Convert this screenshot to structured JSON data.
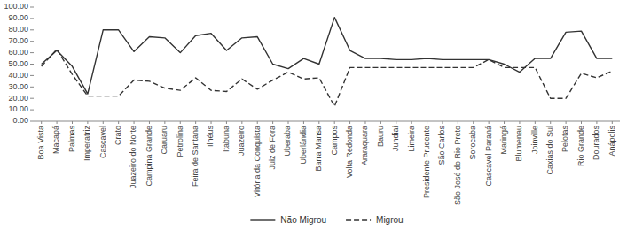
{
  "chart_data": {
    "type": "line",
    "categories": [
      "Boa Vista",
      "Macapá",
      "Palmas",
      "Imperatriz",
      "Cascavel",
      "Crato",
      "Juazeiro do Norte",
      "Campina Grande",
      "Caruaru",
      "Petrolina",
      "Feira de Santana",
      "Ilhéus",
      "Itabuna",
      "Juazeiro",
      "Vitória da Conquista",
      "Juiz de Fora",
      "Uberaba",
      "Uberlândia",
      "Barra Mansa",
      "Campos",
      "Volta Redonda",
      "Araraquara",
      "Bauru",
      "Jundiaí",
      "Limeira",
      "Presidente Prudente",
      "São Carlos",
      "São José do Rio Preto",
      "Sorocaba",
      "Cascavel Paraná",
      "Maringá",
      "Blumenau",
      "Joinville",
      "Caxias do Sul",
      "Pelotas",
      "Rio Grande",
      "Dourados",
      "Anápolis"
    ],
    "series": [
      {
        "name": "Não Migrou",
        "color": "#333333",
        "line_style": "solid",
        "values": [
          50,
          62,
          48,
          24,
          80,
          80,
          61,
          74,
          73,
          60,
          75,
          77,
          62,
          73,
          74,
          50,
          46,
          55,
          50,
          91,
          62,
          55,
          55,
          54,
          54,
          55,
          54,
          54,
          54,
          54,
          50,
          43,
          55,
          55,
          78,
          79,
          55,
          55
        ]
      },
      {
        "name": "Migrou",
        "color": "#333333",
        "line_style": "dashed",
        "values": [
          48,
          63,
          41,
          22,
          22,
          22,
          36,
          35,
          29,
          27,
          38,
          27,
          26,
          37,
          28,
          36,
          43,
          37,
          38,
          13,
          47,
          47,
          47,
          47,
          47,
          47,
          47,
          47,
          47,
          54,
          47,
          47,
          47,
          20,
          20,
          42,
          38,
          44
        ]
      }
    ],
    "ylim": [
      0,
      100
    ],
    "yticks": [
      {
        "value": 0,
        "label": "0.00"
      },
      {
        "value": 10,
        "label": "10.00"
      },
      {
        "value": 20,
        "label": "20.00"
      },
      {
        "value": 30,
        "label": "30.00"
      },
      {
        "value": 40,
        "label": "40.00"
      },
      {
        "value": 50,
        "label": "50.00"
      },
      {
        "value": 60,
        "label": "60.00"
      },
      {
        "value": 70,
        "label": "70.00"
      },
      {
        "value": 80,
        "label": "80.00"
      },
      {
        "value": 90,
        "label": "90.00"
      },
      {
        "value": 100,
        "label": "100.00"
      }
    ],
    "grid": false,
    "legend": "bottom"
  }
}
